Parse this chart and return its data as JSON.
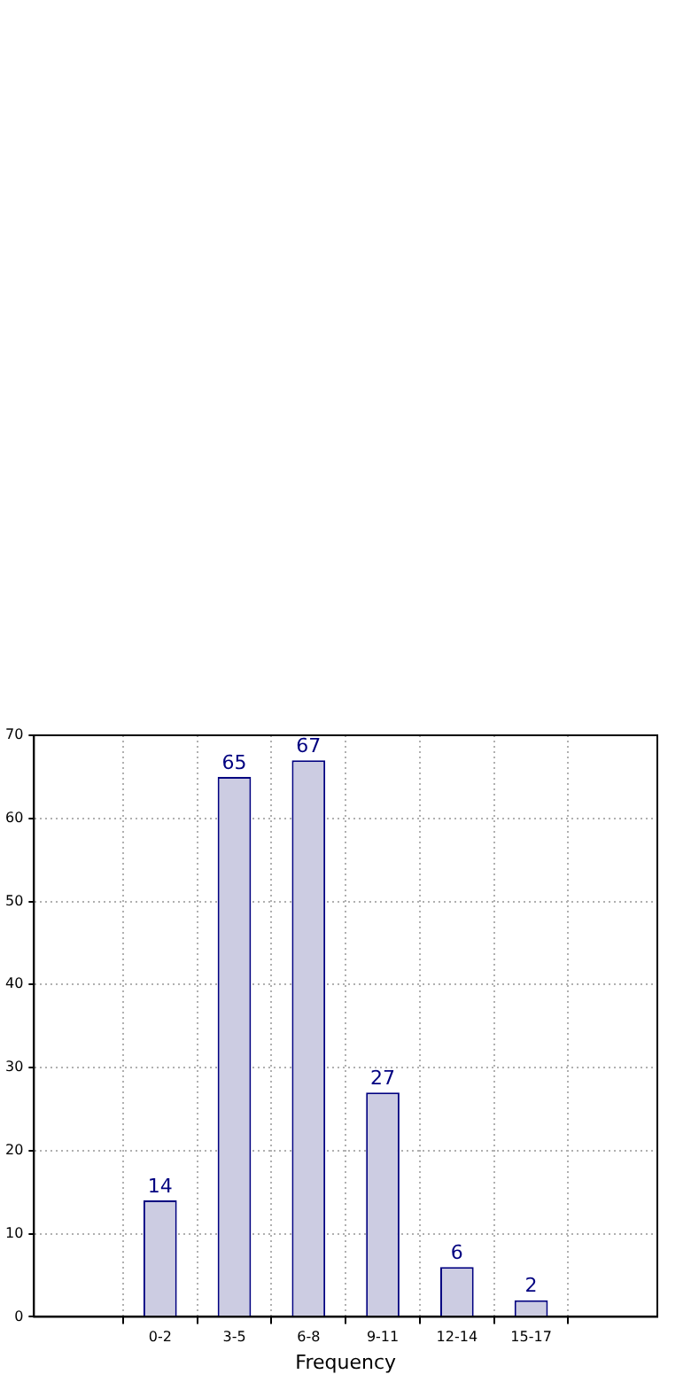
{
  "chart_data": {
    "type": "bar",
    "xlabel": "Frequency",
    "categories": [
      "0-2",
      "3-5",
      "6-8",
      "9-11",
      "12-14",
      "15-17"
    ],
    "series": [
      {
        "color": "#ccccE2",
        "values": [
          14,
          65,
          67,
          27,
          6,
          2
        ]
      }
    ],
    "ylim": [
      0,
      70
    ],
    "yticks": [
      0,
      10,
      20,
      30,
      40,
      50,
      60,
      70
    ],
    "grid": true,
    "data_labels": true
  }
}
